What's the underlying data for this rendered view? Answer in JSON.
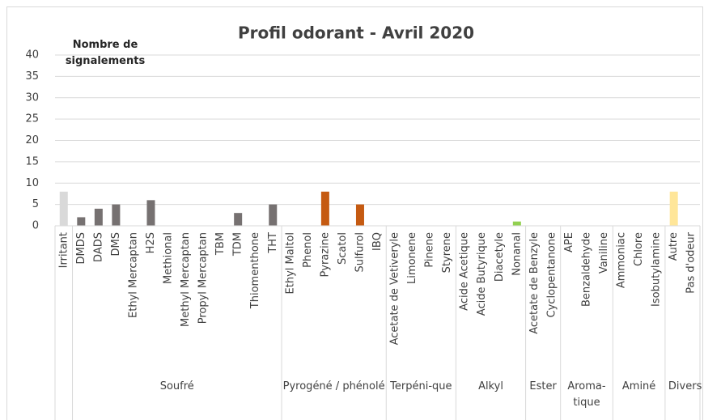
{
  "chart_data": {
    "type": "bar",
    "title": "Profil odorant - Avril 2020",
    "y_label": "Nombre de signalements",
    "ylim": [
      0,
      40
    ],
    "yticks": [
      0,
      5,
      10,
      15,
      20,
      25,
      30,
      35,
      40
    ],
    "grid": true,
    "groups": [
      {
        "name": null,
        "color": "#d9d9d9",
        "categories": [
          "Irritant"
        ],
        "values": [
          8
        ]
      },
      {
        "name": "Soufré",
        "color": "#767171",
        "categories": [
          "DMDS",
          "DADS",
          "DMS",
          "Ethyl Mercaptan",
          "H2S",
          "Methional",
          "Methyl Mercaptan",
          "Propyl Mercaptan",
          "TBM",
          "TDM",
          "Thiomenthone",
          "THT"
        ],
        "values": [
          2,
          4,
          5,
          0,
          6,
          0,
          0,
          0,
          0,
          3,
          0,
          5
        ]
      },
      {
        "name": "Pyrogéné / phénolé",
        "color": "#c55a11",
        "categories": [
          "Ethyl Maltol",
          "Phenol",
          "Pyrazine",
          "Scatol",
          "Sulfurol",
          "IBQ"
        ],
        "values": [
          0,
          0,
          8,
          0,
          5,
          0
        ]
      },
      {
        "name": "Terpéni-que",
        "color": "#a9d18e",
        "categories": [
          "Acetate de Vetiveryle",
          "Limonene",
          "Pinene",
          "Styrene"
        ],
        "values": [
          0,
          0,
          0,
          0
        ]
      },
      {
        "name": "Alkyl",
        "color": "#92d050",
        "categories": [
          "Acide Acetique",
          "Acide Butyrique",
          "Diacetyle",
          "Nonanal"
        ],
        "values": [
          0,
          0,
          0,
          1
        ]
      },
      {
        "name": "Ester",
        "color": "#8faadc",
        "categories": [
          "Acetate de Benzyle",
          "Cyclopentanone"
        ],
        "values": [
          0,
          0
        ]
      },
      {
        "name": "Aroma-tique",
        "color": "#f4b183",
        "categories": [
          "APE",
          "Benzaldehyde",
          "Vaniline"
        ],
        "values": [
          0,
          0,
          0
        ]
      },
      {
        "name": "Aminé",
        "color": "#b4c7e7",
        "categories": [
          "Ammoniac",
          "Chlore",
          "Isobutylamine"
        ],
        "values": [
          0,
          0,
          0
        ]
      },
      {
        "name": "Divers",
        "color": "#ffe699",
        "categories": [
          "Autre",
          "Pas d'odeur"
        ],
        "values": [
          8,
          0
        ]
      }
    ]
  }
}
